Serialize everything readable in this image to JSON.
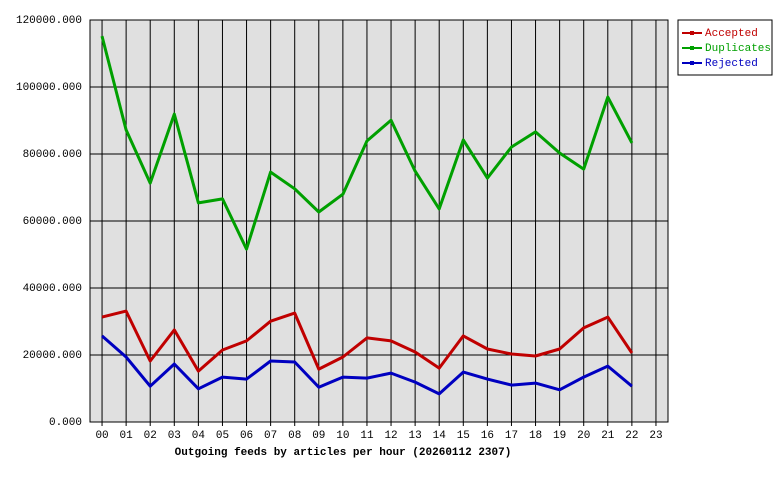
{
  "chart_data": {
    "type": "line",
    "title": "Outgoing feeds by articles per hour (20260112 2307)",
    "categories": [
      "00",
      "01",
      "02",
      "03",
      "04",
      "05",
      "06",
      "07",
      "08",
      "09",
      "10",
      "11",
      "12",
      "13",
      "14",
      "15",
      "16",
      "17",
      "18",
      "19",
      "20",
      "21",
      "22",
      "23"
    ],
    "series": [
      {
        "name": "Accepted",
        "color": "#c00000",
        "values": [
          31300,
          33100,
          18200,
          27500,
          15200,
          21500,
          24200,
          30100,
          32500,
          15800,
          19400,
          25100,
          24200,
          20900,
          16100,
          25700,
          21800,
          20300,
          19700,
          21800,
          28100,
          31300,
          20600,
          null
        ]
      },
      {
        "name": "Duplicates",
        "color": "#00a000",
        "values": [
          115200,
          87200,
          71300,
          91900,
          65400,
          66600,
          51600,
          74600,
          69600,
          62700,
          68000,
          83900,
          90100,
          74900,
          63600,
          84200,
          72800,
          82100,
          86600,
          80300,
          75500,
          97000,
          83300,
          null
        ]
      },
      {
        "name": "Rejected",
        "color": "#0000c0",
        "values": [
          25700,
          19400,
          10700,
          17300,
          9900,
          13400,
          12800,
          18200,
          17900,
          10400,
          13400,
          13100,
          14600,
          11900,
          8400,
          14900,
          12800,
          11000,
          11600,
          9600,
          13400,
          16700,
          10700,
          null
        ]
      }
    ],
    "ylim": [
      0,
      120000
    ],
    "yticks": [
      {
        "value": 0,
        "label": "0.000"
      },
      {
        "value": 20000,
        "label": "20000.000"
      },
      {
        "value": 40000,
        "label": "40000.000"
      },
      {
        "value": 60000,
        "label": "60000.000"
      },
      {
        "value": 80000,
        "label": "80000.000"
      },
      {
        "value": 100000,
        "label": "100000.000"
      },
      {
        "value": 120000,
        "label": "120000.000"
      }
    ],
    "grid": true,
    "legend": "right"
  }
}
